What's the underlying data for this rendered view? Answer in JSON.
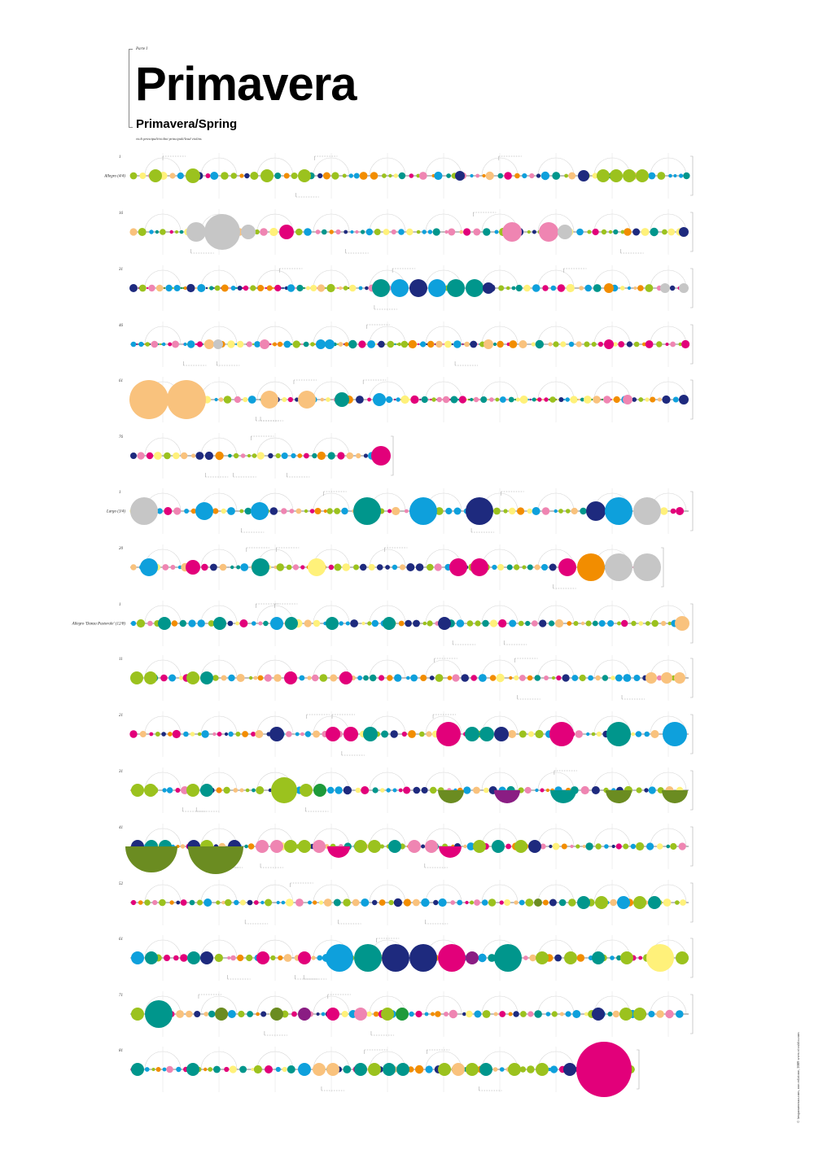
{
  "header": {
    "part_label": "Parte I",
    "title": "Primavera",
    "subtitle": "Primavera/Spring",
    "credits": "violi principali/violini principali/lead violins"
  },
  "side_note": "© lowparamezzo.com, non edizione, 2009   www.vivaldio.com",
  "palette": {
    "lime": "#9bc21e",
    "cyan": "#0ea0dc",
    "teal": "#00968c",
    "navy": "#1e2a7e",
    "magenta": "#e2007a",
    "orange": "#f28d00",
    "peach": "#f9c27d",
    "pink": "#ef85b2",
    "grey": "#c6c6c6",
    "yellow": "#fff17a",
    "olive": "#6b8c21",
    "green": "#1e9a3a",
    "purple": "#8a1d83"
  },
  "staves": [
    {
      "measure": "1",
      "movement": "Allegro (4/4)"
    },
    {
      "measure": "16",
      "movement": ""
    },
    {
      "measure": "31",
      "movement": ""
    },
    {
      "measure": "46",
      "movement": ""
    },
    {
      "measure": "61",
      "movement": ""
    },
    {
      "measure": "76",
      "movement": ""
    },
    {
      "measure": "1",
      "movement": "Largo (3/4)"
    },
    {
      "measure": "20",
      "movement": ""
    },
    {
      "measure": "1",
      "movement": "Allegro 'Danza Pastorale' (12/8)"
    },
    {
      "measure": "11",
      "movement": ""
    },
    {
      "measure": "21",
      "movement": ""
    },
    {
      "measure": "31",
      "movement": ""
    },
    {
      "measure": "41",
      "movement": ""
    },
    {
      "measure": "52",
      "movement": ""
    },
    {
      "measure": "61",
      "movement": ""
    },
    {
      "measure": "71",
      "movement": ""
    },
    {
      "measure": "81",
      "movement": ""
    }
  ]
}
